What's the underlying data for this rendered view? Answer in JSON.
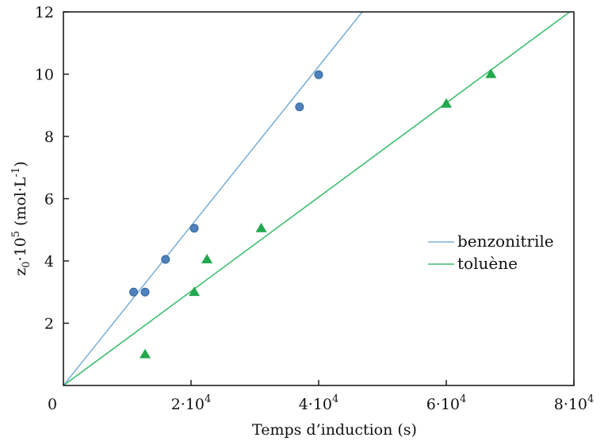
{
  "chart_data": {
    "type": "scatter",
    "xlabel": "Temps d’induction (s)",
    "ylabel": {
      "prefix": "z",
      "sub": "0",
      "mid": "·10",
      "sup": "5",
      "unit_open": " (mol·L",
      "unit_sup": "-1",
      "unit_close": ")"
    },
    "xlim": [
      0,
      80000
    ],
    "ylim": [
      0,
      12
    ],
    "x_ticks": [
      {
        "value": 0,
        "base": "0",
        "exp": ""
      },
      {
        "value": 20000,
        "base": "2·10",
        "exp": "4"
      },
      {
        "value": 40000,
        "base": "4·10",
        "exp": "4"
      },
      {
        "value": 60000,
        "base": "6·10",
        "exp": "4"
      },
      {
        "value": 80000,
        "base": "8·10",
        "exp": "4"
      }
    ],
    "y_ticks": [
      {
        "value": 2,
        "label": "2"
      },
      {
        "value": 4,
        "label": "4"
      },
      {
        "value": 6,
        "label": "6"
      },
      {
        "value": 8,
        "label": "8"
      },
      {
        "value": 10,
        "label": "10"
      },
      {
        "value": 12,
        "label": "12"
      }
    ],
    "grid": false,
    "legend_position": "right",
    "series": [
      {
        "name": "benzonitrile",
        "color": "#7fb2d9",
        "marker": "circle",
        "marker_color": "#4f81bd",
        "points": [
          [
            11000,
            3.0
          ],
          [
            12800,
            3.0
          ],
          [
            16000,
            4.05
          ],
          [
            20500,
            5.05
          ],
          [
            37000,
            8.95
          ],
          [
            40000,
            9.98
          ]
        ],
        "fit_line": [
          [
            0,
            0
          ],
          [
            48000,
            12.3
          ]
        ]
      },
      {
        "name": "toluène",
        "color": "#3dbf6e",
        "marker": "triangle",
        "marker_color": "#22a84e",
        "points": [
          [
            12800,
            1.0
          ],
          [
            20500,
            3.0
          ],
          [
            22500,
            4.05
          ],
          [
            31000,
            5.05
          ],
          [
            60000,
            9.05
          ],
          [
            67000,
            10.0
          ]
        ],
        "fit_line": [
          [
            0,
            0
          ],
          [
            80000,
            12.1
          ]
        ]
      }
    ]
  }
}
